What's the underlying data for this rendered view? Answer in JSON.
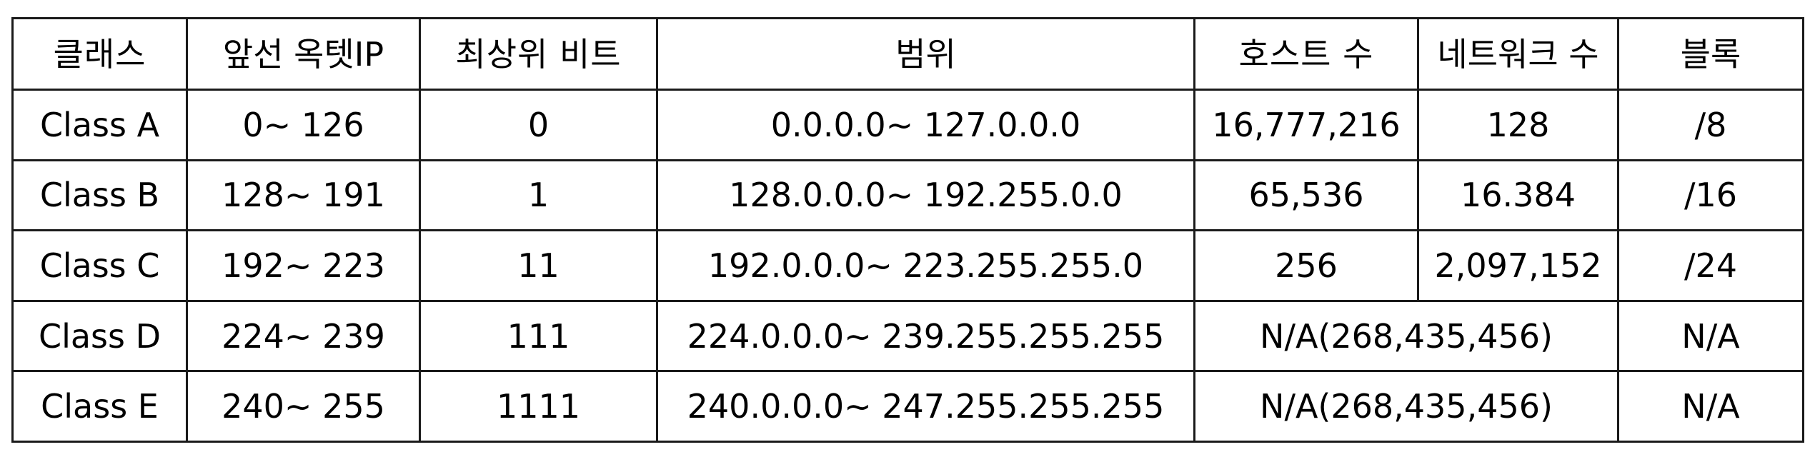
{
  "table": {
    "headers": [
      "클래스",
      "앞선 옥텟IP",
      "최상위 비트",
      "범위",
      "호스트 수",
      "네트워크 수",
      "블록"
    ],
    "rows": [
      {
        "class": "Class A",
        "first_octet": "0~ 126",
        "leading_bits": "0",
        "range": "0.0.0.0~ 127.0.0.0",
        "hosts": "16,777,216",
        "networks": "128",
        "block": "/8"
      },
      {
        "class": "Class B",
        "first_octet": "128~ 191",
        "leading_bits": "1",
        "range": "128.0.0.0~ 192.255.0.0",
        "hosts": "65,536",
        "networks": "16.384",
        "block": "/16"
      },
      {
        "class": "Class C",
        "first_octet": "192~ 223",
        "leading_bits": "11",
        "range": "192.0.0.0~ 223.255.255.0",
        "hosts": "256",
        "networks": "2,097,152",
        "block": "/24"
      },
      {
        "class": "Class D",
        "first_octet": "224~ 239",
        "leading_bits": "111",
        "range": "224.0.0.0~ 239.255.255.255",
        "hosts_networks_merged": "N/A(268,435,456)",
        "block": "N/A"
      },
      {
        "class": "Class E",
        "first_octet": "240~ 255",
        "leading_bits": "1111",
        "range": "240.0.0.0~ 247.255.255.255",
        "hosts_networks_merged": "N/A(268,435,456)",
        "block": "N/A"
      }
    ]
  }
}
